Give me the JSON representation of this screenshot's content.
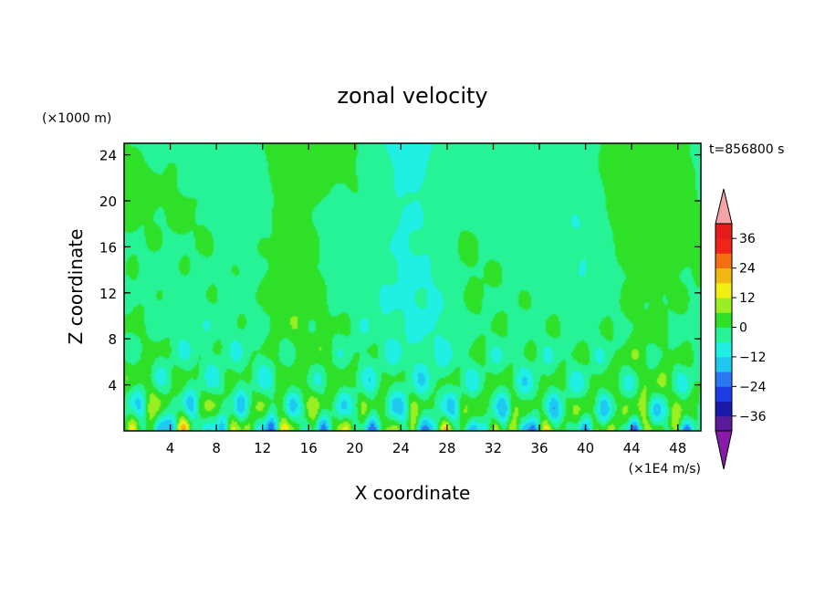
{
  "chart_data": {
    "type": "heatmap",
    "title": "zonal velocity",
    "xlabel": "X coordinate",
    "ylabel": "Z coordinate",
    "y_unit": "(×1000 m)",
    "color_unit": "(×1E4 m/s)",
    "time_label": "t=856800 s",
    "xlim": [
      0,
      50
    ],
    "ylim": [
      0,
      25
    ],
    "x_ticks": [
      4,
      8,
      12,
      16,
      20,
      24,
      28,
      32,
      36,
      40,
      44,
      48
    ],
    "y_ticks": [
      4,
      8,
      12,
      16,
      20,
      24
    ],
    "x_tick_labels": [
      "4",
      "8",
      "12",
      "16",
      "20",
      "24",
      "28",
      "32",
      "36",
      "40",
      "44",
      "48"
    ],
    "y_tick_labels": [
      "4",
      "8",
      "12",
      "16",
      "20",
      "24"
    ],
    "colorbar": {
      "levels": [
        -36,
        -30,
        -24,
        -18,
        -12,
        -6,
        0,
        6,
        12,
        18,
        24,
        30,
        36
      ],
      "labels": [
        "36",
        "24",
        "12",
        "0",
        "−12",
        "−24",
        "−36"
      ],
      "label_values": [
        36,
        24,
        12,
        0,
        -12,
        -24,
        -36
      ],
      "colors": [
        "#5a1a9a",
        "#1a1aa8",
        "#1e3ce6",
        "#2a78f0",
        "#1ec8f0",
        "#20f0e4",
        "#26f296",
        "#2ee028",
        "#9aee22",
        "#f2ee14",
        "#f2b812",
        "#f27012",
        "#f02418",
        "#e61c1c"
      ],
      "under_color": "#8a1aa8",
      "over_color": "#f4a4a4"
    }
  }
}
